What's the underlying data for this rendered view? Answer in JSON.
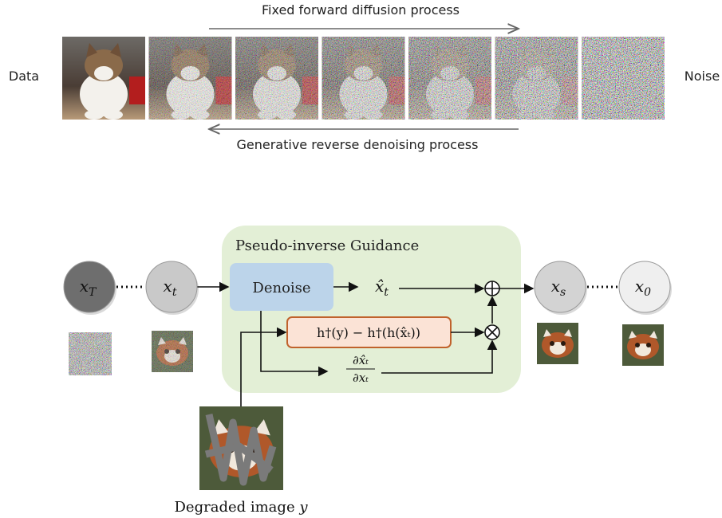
{
  "top": {
    "forward_label": "Fixed forward diffusion process",
    "reverse_label": "Generative reverse denoising process",
    "left_label": "Data",
    "right_label": "Noise"
  },
  "guidance": {
    "title": "Pseudo-inverse Guidance",
    "denoise": "Denoise",
    "estimate": {
      "base": "x̂",
      "sub": "t"
    },
    "correction": "h†(y) − h†(h(x̂ₜ))",
    "jacobian": {
      "numerator": "∂x̂ₜ",
      "denominator": "∂xₜ"
    }
  },
  "nodes": [
    {
      "base": "x",
      "sub": "T"
    },
    {
      "base": "x",
      "sub": "t"
    },
    {
      "base": "x",
      "sub": "s"
    },
    {
      "base": "x",
      "sub": "0"
    }
  ],
  "degraded_caption": {
    "text": "Degraded image ",
    "var": "y"
  }
}
